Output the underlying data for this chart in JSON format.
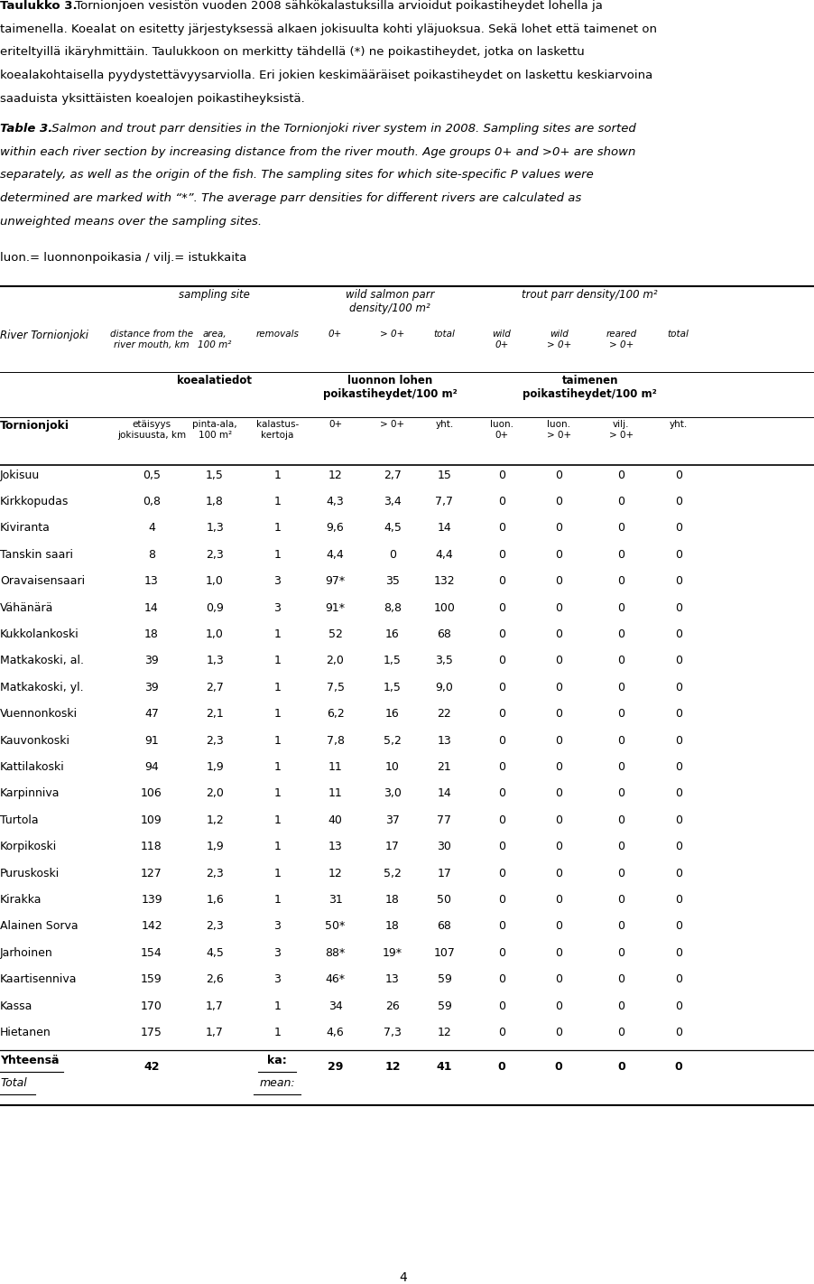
{
  "para1_bold": "Taulukko 3.",
  "para1_lines": [
    " Tornionjoen vesistön vuoden 2008 sähkökalastuksilla arvioidut poikastiheydet lohella ja",
    "taimenella. Koealat on esitetty järjestyksessä alkaen jokisuulta kohti yläjuoksua. Sekä lohet että taimenet on",
    "eriteltyillä ikäryhmittäin. Taulukkoon on merkitty tähdellä (*) ne poikastiheydet, jotka on laskettu",
    "koealakohtaisella pyydystettävyysarviolla. Eri jokien keskimääräiset poikastiheydet on laskettu keskiarvoina",
    "saaduista yksittäisten koealojen poikastiheyksistä."
  ],
  "para2_bold": "Table 3.",
  "para2_lines": [
    " Salmon and trout parr densities in the Tornionjoki river system in 2008. Sampling sites are sorted",
    "within each river section by increasing distance from the river mouth. Age groups 0+ and >0+ are shown",
    "separately, as well as the origin of the fish. The sampling sites for which site-specific P values were",
    "determined are marked with “*”. The average parr densities for different rivers are calculated as",
    "unweighted means over the sampling sites."
  ],
  "legend": "luon.= luonnonpoikasia / vilj.= istukkaita",
  "rows": [
    [
      "Jokisuu",
      "0,5",
      "1,5",
      "1",
      "12",
      "2,7",
      "15",
      "0",
      "0",
      "0",
      "0"
    ],
    [
      "Kirkkopudas",
      "0,8",
      "1,8",
      "1",
      "4,3",
      "3,4",
      "7,7",
      "0",
      "0",
      "0",
      "0"
    ],
    [
      "Kiviranta",
      "4",
      "1,3",
      "1",
      "9,6",
      "4,5",
      "14",
      "0",
      "0",
      "0",
      "0"
    ],
    [
      "Tanskin saari",
      "8",
      "2,3",
      "1",
      "4,4",
      "0",
      "4,4",
      "0",
      "0",
      "0",
      "0"
    ],
    [
      "Oravaisensaari",
      "13",
      "1,0",
      "3",
      "97*",
      "35",
      "132",
      "0",
      "0",
      "0",
      "0"
    ],
    [
      "Vähänärä",
      "14",
      "0,9",
      "3",
      "91*",
      "8,8",
      "100",
      "0",
      "0",
      "0",
      "0"
    ],
    [
      "Kukkolankoski",
      "18",
      "1,0",
      "1",
      "52",
      "16",
      "68",
      "0",
      "0",
      "0",
      "0"
    ],
    [
      "Matkakoski, al.",
      "39",
      "1,3",
      "1",
      "2,0",
      "1,5",
      "3,5",
      "0",
      "0",
      "0",
      "0"
    ],
    [
      "Matkakoski, yl.",
      "39",
      "2,7",
      "1",
      "7,5",
      "1,5",
      "9,0",
      "0",
      "0",
      "0",
      "0"
    ],
    [
      "Vuennonkoski",
      "47",
      "2,1",
      "1",
      "6,2",
      "16",
      "22",
      "0",
      "0",
      "0",
      "0"
    ],
    [
      "Kauvonkoski",
      "91",
      "2,3",
      "1",
      "7,8",
      "5,2",
      "13",
      "0",
      "0",
      "0",
      "0"
    ],
    [
      "Kattilakoski",
      "94",
      "1,9",
      "1",
      "11",
      "10",
      "21",
      "0",
      "0",
      "0",
      "0"
    ],
    [
      "Karpinniva",
      "106",
      "2,0",
      "1",
      "11",
      "3,0",
      "14",
      "0",
      "0",
      "0",
      "0"
    ],
    [
      "Turtola",
      "109",
      "1,2",
      "1",
      "40",
      "37",
      "77",
      "0",
      "0",
      "0",
      "0"
    ],
    [
      "Korpikoski",
      "118",
      "1,9",
      "1",
      "13",
      "17",
      "30",
      "0",
      "0",
      "0",
      "0"
    ],
    [
      "Puruskoski",
      "127",
      "2,3",
      "1",
      "12",
      "5,2",
      "17",
      "0",
      "0",
      "0",
      "0"
    ],
    [
      "Kirakka",
      "139",
      "1,6",
      "1",
      "31",
      "18",
      "50",
      "0",
      "0",
      "0",
      "0"
    ],
    [
      "Alainen Sorva",
      "142",
      "2,3",
      "3",
      "50*",
      "18",
      "68",
      "0",
      "0",
      "0",
      "0"
    ],
    [
      "Jarhoinen",
      "154",
      "4,5",
      "3",
      "88*",
      "19*",
      "107",
      "0",
      "0",
      "0",
      "0"
    ],
    [
      "Kaartisenniva",
      "159",
      "2,6",
      "3",
      "46*",
      "13",
      "59",
      "0",
      "0",
      "0",
      "0"
    ],
    [
      "Kassa",
      "170",
      "1,7",
      "1",
      "34",
      "26",
      "59",
      "0",
      "0",
      "0",
      "0"
    ],
    [
      "Hietanen",
      "175",
      "1,7",
      "1",
      "4,6",
      "7,3",
      "12",
      "0",
      "0",
      "0",
      "0"
    ]
  ],
  "page_number": "4",
  "bg_color": "#ffffff"
}
